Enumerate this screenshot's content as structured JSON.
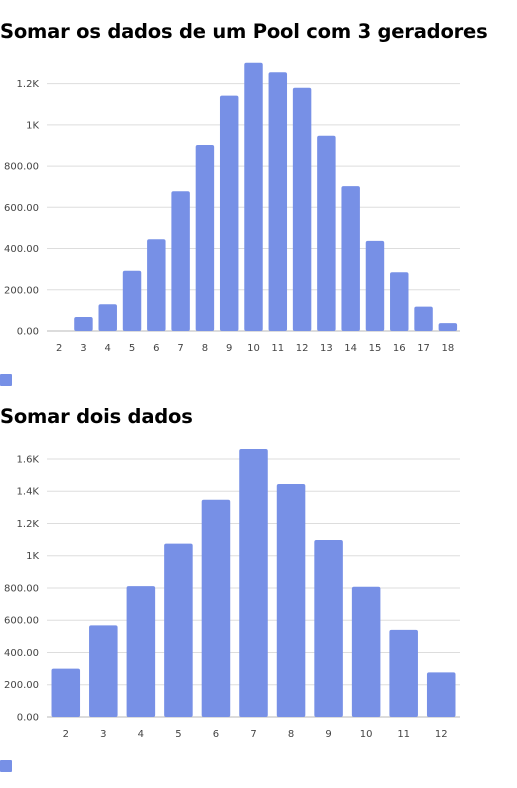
{
  "chart_data": [
    {
      "type": "bar",
      "title": "Somar os dados de um Pool com 3 geradores",
      "categories": [
        "2",
        "3",
        "4",
        "5",
        "6",
        "7",
        "8",
        "9",
        "10",
        "11",
        "12",
        "13",
        "14",
        "15",
        "16",
        "17",
        "18"
      ],
      "values": [
        0,
        68,
        130,
        292,
        445,
        678,
        902,
        1142,
        1301,
        1255,
        1180,
        947,
        703,
        437,
        285,
        118,
        38
      ],
      "yticks": [
        0,
        200,
        400,
        600,
        800,
        1000,
        1200
      ],
      "ytick_labels": [
        "0.00",
        "200.00",
        "400.00",
        "600.00",
        "800.00",
        "1K",
        "1.2K"
      ],
      "ylim": [
        0,
        1300
      ],
      "grid": true,
      "legend": "bottom-left",
      "color": "#7790e6"
    },
    {
      "type": "bar",
      "title": "Somar dois dados",
      "categories": [
        "2",
        "3",
        "4",
        "5",
        "6",
        "7",
        "8",
        "9",
        "10",
        "11",
        "12"
      ],
      "values": [
        300,
        568,
        812,
        1075,
        1347,
        1662,
        1445,
        1098,
        808,
        540,
        277
      ],
      "yticks": [
        0,
        200,
        400,
        600,
        800,
        1000,
        1200,
        1400,
        1600
      ],
      "ytick_labels": [
        "0.00",
        "200.00",
        "400.00",
        "600.00",
        "800.00",
        "1K",
        "1.2K",
        "1.4K",
        "1.6K"
      ],
      "ylim": [
        0,
        1662
      ],
      "grid": true,
      "legend": "bottom-left",
      "color": "#7790e6"
    }
  ]
}
